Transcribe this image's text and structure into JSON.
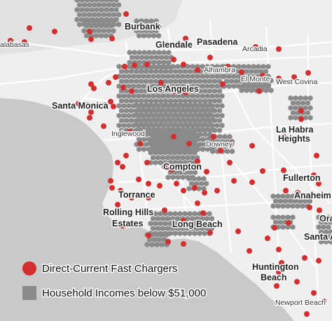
{
  "colors": {
    "background": "#e9e9e9",
    "water": "#c9c9c9",
    "land": "#efefef",
    "road": "#ffffff",
    "charger": "#d32f2f",
    "income": "#8a8a8a"
  },
  "cities": [
    {
      "name": "Burbank",
      "style": "b"
    },
    {
      "name": "Glendale",
      "style": "b"
    },
    {
      "name": "Pasadena",
      "style": "b"
    },
    {
      "name": "Arcadia",
      "style": "s"
    },
    {
      "name": "Alhambra",
      "style": "s"
    },
    {
      "name": "El Monte",
      "style": "s"
    },
    {
      "name": "West Covina",
      "style": "s"
    },
    {
      "name": "Los Angeles",
      "style": "b"
    },
    {
      "name": "Santa Monica",
      "style": "b"
    },
    {
      "name": "Inglewood",
      "style": "s"
    },
    {
      "name": "Downey",
      "style": "s"
    },
    {
      "name": "La Habra",
      "style": "b"
    },
    {
      "name": "Heights",
      "style": "b"
    },
    {
      "name": "Compton",
      "style": "b"
    },
    {
      "name": "Fullerton",
      "style": "b"
    },
    {
      "name": "Torrance",
      "style": "b"
    },
    {
      "name": "Anaheim",
      "style": "b"
    },
    {
      "name": "Rolling Hills",
      "style": "b"
    },
    {
      "name": "Estates",
      "style": "b"
    },
    {
      "name": "Long Beach",
      "style": "b"
    },
    {
      "name": "Santa A",
      "style": "b"
    },
    {
      "name": "Ora",
      "style": "b"
    },
    {
      "name": "Huntington",
      "style": "b"
    },
    {
      "name": "Beach",
      "style": "b"
    },
    {
      "name": "Newport Beach",
      "style": "s"
    },
    {
      "name": "alabasas",
      "style": "s"
    }
  ],
  "legend": {
    "chargers_label": "Direct-Current Fast Chargers",
    "income_label": "Household Incomes below $51,000",
    "chargers_icon": "red-circle-icon",
    "income_icon": "gray-square-icon"
  }
}
